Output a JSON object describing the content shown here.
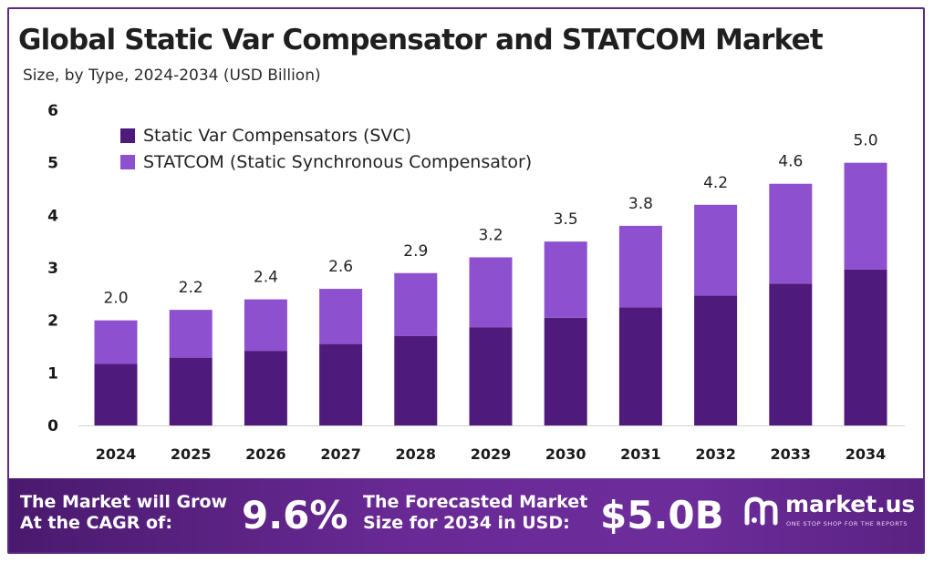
{
  "header": {
    "title": "Global Static Var Compensator and STATCOM Market",
    "subtitle": "Size, by Type, 2024-2034 (USD Billion)"
  },
  "colors": {
    "svc": "#4e1a7c",
    "statcom": "#8d50cf",
    "frame": "#5b2a86",
    "banner": "#6a2a96"
  },
  "chart_data": {
    "type": "bar",
    "stacked": true,
    "categories": [
      "2024",
      "2025",
      "2026",
      "2027",
      "2028",
      "2029",
      "2030",
      "2031",
      "2032",
      "2033",
      "2034"
    ],
    "series": [
      {
        "name": "Static Var Compensators (SVC)",
        "values": [
          1.17,
          1.29,
          1.42,
          1.55,
          1.7,
          1.87,
          2.05,
          2.25,
          2.47,
          2.7,
          2.97
        ]
      },
      {
        "name": "STATCOM (Static Synchronous Compensator)",
        "values": [
          0.83,
          0.91,
          0.98,
          1.05,
          1.2,
          1.33,
          1.45,
          1.55,
          1.73,
          1.9,
          2.03
        ]
      }
    ],
    "totals": [
      "2.0",
      "2.2",
      "2.4",
      "2.6",
      "2.9",
      "3.2",
      "3.5",
      "3.8",
      "4.2",
      "4.6",
      "5.0"
    ],
    "yticks": [
      "0",
      "1",
      "2",
      "3",
      "4",
      "5",
      "6"
    ],
    "ylim": [
      0,
      6
    ],
    "grid": false,
    "legend_position": "top-left"
  },
  "banner": {
    "cagr_line1": "The Market will Grow",
    "cagr_line2": "At the CAGR of:",
    "cagr_value": "9.6%",
    "forecast_line1": "The Forecasted Market",
    "forecast_line2": "Size for 2034 in USD:",
    "forecast_value": "$5.0B",
    "logo_text": "market.us",
    "logo_tagline": "ONE STOP SHOP FOR THE REPORTS"
  }
}
